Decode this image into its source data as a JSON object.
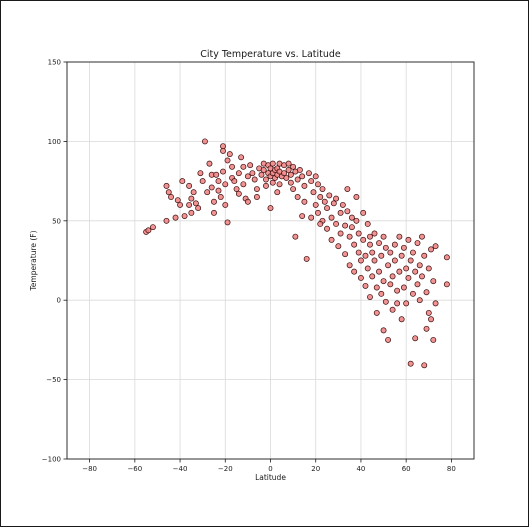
{
  "chart_data": {
    "type": "scatter",
    "title": "City Temperature vs. Latitude",
    "xlabel": "Latitude",
    "ylabel": "Temperature (F)",
    "xlim": [
      -90,
      90
    ],
    "ylim": [
      -100,
      150
    ],
    "xticks": [
      -80,
      -60,
      -40,
      -20,
      0,
      20,
      40,
      60,
      80
    ],
    "yticks": [
      -100,
      -50,
      0,
      50,
      100,
      150
    ],
    "grid": true,
    "marker_color": "#f08080",
    "marker_edge_color": "#3a0d0d",
    "points": [
      [
        -55,
        43
      ],
      [
        -54,
        44
      ],
      [
        -52,
        46
      ],
      [
        -46,
        50
      ],
      [
        -42,
        52
      ],
      [
        -46,
        72
      ],
      [
        -45,
        68
      ],
      [
        -44,
        65
      ],
      [
        -41,
        63
      ],
      [
        -40,
        60
      ],
      [
        -39,
        75
      ],
      [
        -38,
        53
      ],
      [
        -36,
        72
      ],
      [
        -36,
        60
      ],
      [
        -35,
        64
      ],
      [
        -35,
        55
      ],
      [
        -34,
        68
      ],
      [
        -33,
        61
      ],
      [
        -32,
        58
      ],
      [
        -31,
        80
      ],
      [
        -30,
        75
      ],
      [
        -29,
        100
      ],
      [
        -28,
        68
      ],
      [
        -27,
        86
      ],
      [
        -26,
        79
      ],
      [
        -26,
        71
      ],
      [
        -25,
        62
      ],
      [
        -25,
        55
      ],
      [
        -24,
        79
      ],
      [
        -23,
        75
      ],
      [
        -23,
        69
      ],
      [
        -22,
        65
      ],
      [
        -21,
        97
      ],
      [
        -21,
        94
      ],
      [
        -21,
        81
      ],
      [
        -20,
        73
      ],
      [
        -20,
        60
      ],
      [
        -19,
        88
      ],
      [
        -19,
        49
      ],
      [
        -18,
        92
      ],
      [
        -17,
        84
      ],
      [
        -17,
        77
      ],
      [
        -16,
        75
      ],
      [
        -15,
        70
      ],
      [
        -14,
        67
      ],
      [
        -14,
        80
      ],
      [
        -13,
        90
      ],
      [
        -12,
        73
      ],
      [
        -11,
        64
      ],
      [
        -10,
        78
      ],
      [
        -10,
        62
      ],
      [
        -9,
        85
      ],
      [
        -8,
        80
      ],
      [
        -7,
        76
      ],
      [
        -6,
        70
      ],
      [
        -5,
        83
      ],
      [
        -4,
        79
      ],
      [
        -3,
        86
      ],
      [
        -3,
        82
      ],
      [
        -2,
        76
      ],
      [
        -2,
        72
      ],
      [
        -1,
        85
      ],
      [
        -1,
        80
      ],
      [
        0,
        83
      ],
      [
        0,
        78
      ],
      [
        0,
        58
      ],
      [
        1,
        86
      ],
      [
        1,
        80
      ],
      [
        1,
        74
      ],
      [
        2,
        82
      ],
      [
        2,
        77
      ],
      [
        3,
        83
      ],
      [
        3,
        79
      ],
      [
        4,
        86
      ],
      [
        4,
        81
      ],
      [
        4,
        73
      ],
      [
        5,
        78
      ],
      [
        6,
        85
      ],
      [
        6,
        80
      ],
      [
        7,
        77
      ],
      [
        8,
        86
      ],
      [
        8,
        82
      ],
      [
        9,
        79
      ],
      [
        9,
        74
      ],
      [
        10,
        84
      ],
      [
        10,
        70
      ],
      [
        11,
        81
      ],
      [
        11,
        40
      ],
      [
        12,
        76
      ],
      [
        12,
        65
      ],
      [
        13,
        82
      ],
      [
        14,
        78
      ],
      [
        14,
        53
      ],
      [
        15,
        72
      ],
      [
        15,
        62
      ],
      [
        16,
        26
      ],
      [
        17,
        80
      ],
      [
        18,
        75
      ],
      [
        18,
        52
      ],
      [
        19,
        68
      ],
      [
        20,
        78
      ],
      [
        20,
        60
      ],
      [
        21,
        73
      ],
      [
        21,
        55
      ],
      [
        22,
        65
      ],
      [
        23,
        70
      ],
      [
        23,
        50
      ],
      [
        24,
        62
      ],
      [
        25,
        58
      ],
      [
        25,
        45
      ],
      [
        26,
        66
      ],
      [
        27,
        52
      ],
      [
        27,
        38
      ],
      [
        28,
        61
      ],
      [
        29,
        48
      ],
      [
        29,
        64
      ],
      [
        30,
        34
      ],
      [
        31,
        55
      ],
      [
        31,
        42
      ],
      [
        32,
        60
      ],
      [
        33,
        47
      ],
      [
        33,
        29
      ],
      [
        34,
        70
      ],
      [
        34,
        56
      ],
      [
        35,
        40
      ],
      [
        35,
        22
      ],
      [
        36,
        52
      ],
      [
        36,
        46
      ],
      [
        37,
        35
      ],
      [
        37,
        18
      ],
      [
        38,
        65
      ],
      [
        38,
        50
      ],
      [
        39,
        30
      ],
      [
        39,
        42
      ],
      [
        40,
        25
      ],
      [
        40,
        14
      ],
      [
        41,
        55
      ],
      [
        41,
        38
      ],
      [
        42,
        28
      ],
      [
        42,
        9
      ],
      [
        43,
        48
      ],
      [
        43,
        20
      ],
      [
        44,
        35
      ],
      [
        44,
        2
      ],
      [
        45,
        30
      ],
      [
        45,
        15
      ],
      [
        46,
        42
      ],
      [
        46,
        25
      ],
      [
        47,
        8
      ],
      [
        47,
        -8
      ],
      [
        48,
        36
      ],
      [
        48,
        18
      ],
      [
        49,
        28
      ],
      [
        49,
        4
      ],
      [
        50,
        40
      ],
      [
        50,
        12
      ],
      [
        50,
        -19
      ],
      [
        51,
        33
      ],
      [
        51,
        -1
      ],
      [
        52,
        22
      ],
      [
        52,
        -25
      ],
      [
        53,
        30
      ],
      [
        53,
        10
      ],
      [
        54,
        15
      ],
      [
        54,
        -6
      ],
      [
        55,
        35
      ],
      [
        55,
        25
      ],
      [
        56,
        6
      ],
      [
        56,
        -2
      ],
      [
        57,
        40
      ],
      [
        57,
        18
      ],
      [
        58,
        28
      ],
      [
        58,
        -12
      ],
      [
        59,
        8
      ],
      [
        59,
        33
      ],
      [
        60,
        20
      ],
      [
        60,
        -2
      ],
      [
        61,
        38
      ],
      [
        61,
        14
      ],
      [
        62,
        25
      ],
      [
        62,
        -40
      ],
      [
        63,
        4
      ],
      [
        63,
        30
      ],
      [
        64,
        18
      ],
      [
        64,
        -24
      ],
      [
        65,
        36
      ],
      [
        65,
        10
      ],
      [
        66,
        22
      ],
      [
        66,
        0
      ],
      [
        67,
        40
      ],
      [
        67,
        15
      ],
      [
        68,
        28
      ],
      [
        68,
        -41
      ],
      [
        69,
        5
      ],
      [
        69,
        -18
      ],
      [
        70,
        20
      ],
      [
        70,
        -8
      ],
      [
        71,
        32
      ],
      [
        71,
        -12
      ],
      [
        72,
        -25
      ],
      [
        72,
        12
      ],
      [
        73,
        -2
      ],
      [
        73,
        34
      ],
      [
        78,
        27
      ],
      [
        78,
        10
      ],
      [
        3,
        68
      ],
      [
        -6,
        65
      ],
      [
        -12,
        84
      ],
      [
        22,
        48
      ],
      [
        44,
        40
      ]
    ]
  }
}
